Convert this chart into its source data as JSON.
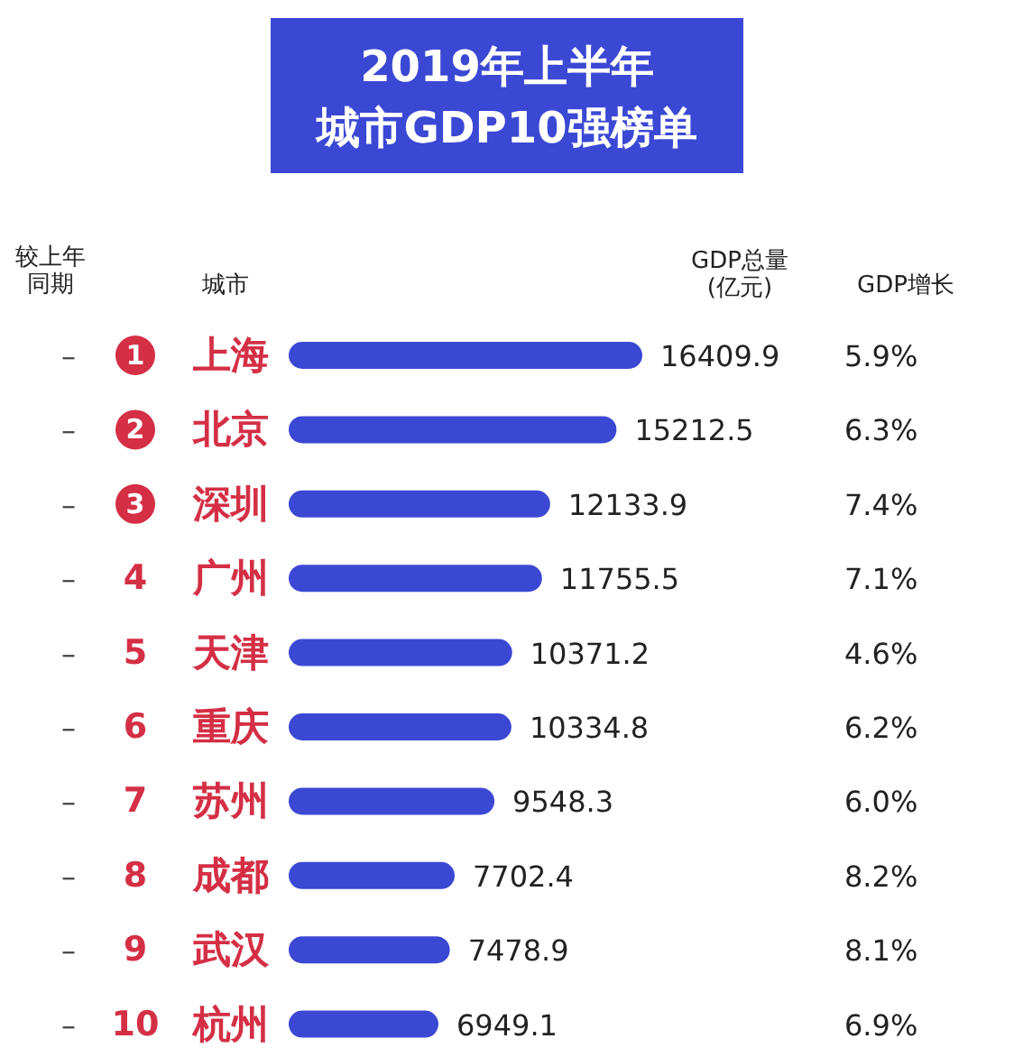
{
  "chart_data": {
    "type": "bar",
    "orientation": "horizontal",
    "title": "2019年上半年",
    "subtitle": "城市GDP10强榜单",
    "ylabel": "城市",
    "categories": [
      "上海",
      "北京",
      "深圳",
      "广州",
      "天津",
      "重庆",
      "苏州",
      "成都",
      "武汉",
      "杭州"
    ],
    "series": [
      {
        "name": "GDP总量(亿元)",
        "color": "#3b48d4",
        "values": [
          16409.9,
          15212.5,
          12133.9,
          11755.5,
          10371.2,
          10334.8,
          9548.3,
          7702.4,
          7478.9,
          6949.1
        ]
      }
    ],
    "data_labels": true,
    "annotations": [
      "较上年同期",
      "–",
      "–",
      "–",
      "–",
      "–",
      "–",
      "–",
      "–",
      "–",
      "–",
      "1",
      "2",
      "3",
      "4",
      "5",
      "6",
      "7",
      "8",
      "9",
      "10",
      "GDP增长",
      "5.9%",
      "6.3%",
      "7.4%",
      "7.1%",
      "4.6%",
      "6.2%",
      "6.0%",
      "8.2%",
      "8.1%",
      "6.9%"
    ]
  }
}
